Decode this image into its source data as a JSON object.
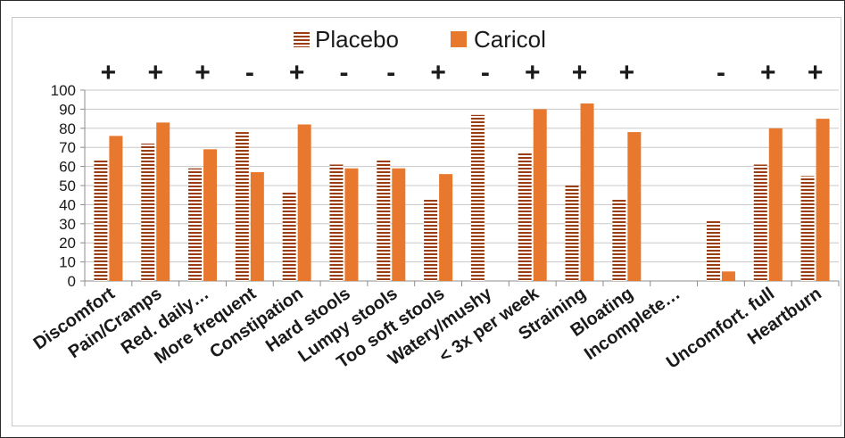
{
  "chart_data": {
    "type": "bar",
    "title": "",
    "xlabel": "",
    "ylabel": "",
    "ylim": [
      0,
      100
    ],
    "yticks": [
      0,
      10,
      20,
      30,
      40,
      50,
      60,
      70,
      80,
      90,
      100
    ],
    "grid": true,
    "legend_position": "top-center",
    "categories": [
      "Discomfort",
      "Pain/Cramps",
      "Red. daily…",
      "More frequent",
      "Constipation",
      "Hard stools",
      "Lumpy stools",
      "Too soft stools",
      "Watery/mushy",
      "< 3x per week",
      "Straining",
      "Bloating",
      "Incomplete…",
      "",
      "Uncomfort. full",
      "Heartburn"
    ],
    "markers": [
      "+",
      "+",
      "+",
      "-",
      "+",
      "-",
      "-",
      "+",
      "-",
      "+",
      "+",
      "+",
      "",
      "-",
      "+",
      "+"
    ],
    "series": [
      {
        "name": "Placebo",
        "color": "#9b3d12",
        "pattern": "horizontal-stripes",
        "values": [
          64,
          72,
          59,
          78,
          47,
          61,
          64,
          43,
          87,
          67,
          50,
          43,
          null,
          32,
          61,
          55
        ]
      },
      {
        "name": "Caricol",
        "color": "#e8782e",
        "pattern": "solid",
        "values": [
          76,
          83,
          69,
          57,
          82,
          59,
          59,
          56,
          null,
          90,
          93,
          78,
          null,
          5,
          80,
          85
        ]
      }
    ]
  }
}
